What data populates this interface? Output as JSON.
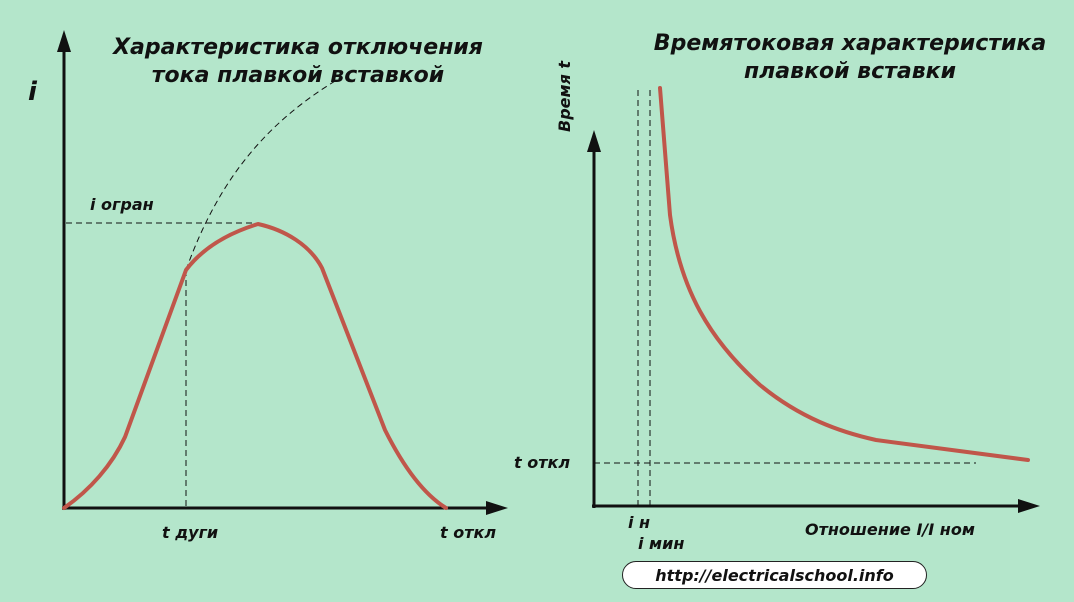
{
  "colors": {
    "background": "#b4e6cb",
    "curve": "#c0564a",
    "axis": "#111111"
  },
  "left_diagram": {
    "title_line1": "Характеристика отключения",
    "title_line2": "тока плавкой вставкой",
    "y_axis_label": "i",
    "i_limit_label": "i огран",
    "t_arc_label": "t дуги",
    "t_off_label": "t откл"
  },
  "right_diagram": {
    "title_line1": "Времятоковая характеристика",
    "title_line2": "плавкой вставки",
    "y_axis_label": "Время t",
    "x_axis_label": "Отношение I/I ном",
    "t_off_label": "t откл",
    "i_n_label": "i н",
    "i_min_label": "i мин"
  },
  "footer": {
    "url": "http://electricalschool.info"
  }
}
